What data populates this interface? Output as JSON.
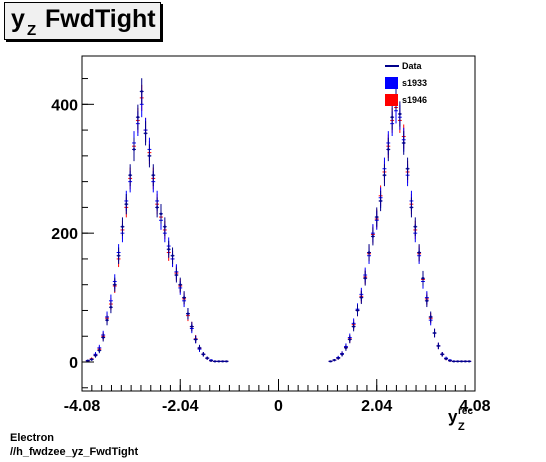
{
  "title": {
    "main": "y",
    "sub": "Z",
    "rest": "FwdTight"
  },
  "footer": {
    "line1": "Electron",
    "line2": "//h_fwdzee_yz_FwdTight"
  },
  "colors": {
    "data": "#00008b",
    "s1933": "#0000ff",
    "s1946": "#ff0000",
    "frame": "#000000"
  },
  "chart_data": {
    "type": "scatter",
    "xlim": [
      -4.08,
      4.08
    ],
    "ylim": [
      -45,
      475
    ],
    "x_tick_labels": [
      {
        "x": -4.08,
        "label": "-4.08"
      },
      {
        "x": -2.04,
        "label": "-2.04"
      },
      {
        "x": 0,
        "label": "0"
      },
      {
        "x": 2.04,
        "label": "2.04"
      },
      {
        "x": 4.08,
        "label": "4.08"
      }
    ],
    "y_tick_labels": [
      {
        "y": 0,
        "label": "0"
      },
      {
        "y": 200,
        "label": "200"
      },
      {
        "y": 400,
        "label": "400"
      }
    ],
    "xlabel": {
      "main": "y",
      "sup": "rec",
      "sub": "Z"
    },
    "legend": [
      {
        "name": "Data",
        "style": "line",
        "color": "#00008b"
      },
      {
        "name": "s1933",
        "style": "box",
        "color": "#0000ff"
      },
      {
        "name": "s1946",
        "style": "box",
        "color": "#ff0000"
      }
    ],
    "legend_position": "top-right",
    "grid": false,
    "series": [
      {
        "name": "Data",
        "x": [
          -3.96,
          -3.88,
          -3.8,
          -3.72,
          -3.64,
          -3.56,
          -3.48,
          -3.4,
          -3.32,
          -3.24,
          -3.16,
          -3.08,
          -3.0,
          -2.92,
          -2.84,
          -2.76,
          -2.68,
          -2.6,
          -2.52,
          -2.44,
          -2.36,
          -2.28,
          -2.2,
          -2.12,
          -2.04,
          -1.96,
          -1.88,
          -1.8,
          -1.72,
          -1.64,
          -1.56,
          -1.48,
          -1.4,
          -1.32,
          -1.24,
          -1.16,
          -1.08,
          1.08,
          1.16,
          1.24,
          1.32,
          1.4,
          1.48,
          1.56,
          1.64,
          1.72,
          1.8,
          1.88,
          1.96,
          2.04,
          2.12,
          2.2,
          2.28,
          2.36,
          2.44,
          2.52,
          2.6,
          2.68,
          2.76,
          2.84,
          2.92,
          3.0,
          3.08,
          3.16,
          3.24,
          3.32,
          3.4,
          3.48,
          3.56,
          3.64,
          3.72,
          3.8,
          3.88,
          3.96
        ],
        "y": [
          2,
          4,
          10,
          18,
          38,
          65,
          85,
          120,
          165,
          210,
          245,
          290,
          330,
          380,
          420,
          355,
          320,
          290,
          240,
          230,
          210,
          175,
          165,
          135,
          120,
          100,
          75,
          55,
          35,
          22,
          12,
          6,
          2,
          1,
          1,
          1,
          1,
          1,
          3,
          6,
          12,
          22,
          35,
          55,
          80,
          100,
          130,
          170,
          195,
          225,
          250,
          290,
          330,
          380,
          410,
          385,
          340,
          300,
          240,
          210,
          170,
          130,
          95,
          70,
          45,
          25,
          12,
          5,
          2,
          1,
          1,
          1,
          1,
          1
        ],
        "yerr": [
          1.5,
          2,
          3.2,
          4.3,
          6.2,
          8,
          9.2,
          11,
          12.8,
          14.5,
          15.7,
          17,
          18.2,
          19.5,
          20.5,
          18.8,
          17.9,
          17,
          15.5,
          15.2,
          14.5,
          13.2,
          12.8,
          11.6,
          11,
          10,
          8.7,
          7.4,
          5.9,
          4.7,
          3.5,
          2.4,
          1.4,
          1,
          1,
          1,
          1,
          1,
          1.7,
          2.4,
          3.5,
          4.7,
          5.9,
          7.4,
          8.9,
          10,
          11.4,
          13,
          14,
          15,
          15.8,
          17,
          18.2,
          19.5,
          20.2,
          19.6,
          18.4,
          17.3,
          15.5,
          14.5,
          13,
          11.4,
          9.7,
          8.4,
          6.7,
          5,
          3.5,
          2.2,
          1.4,
          1,
          1,
          1,
          1,
          1
        ]
      },
      {
        "name": "s1933",
        "x": [
          -3.96,
          -3.88,
          -3.8,
          -3.72,
          -3.64,
          -3.56,
          -3.48,
          -3.4,
          -3.32,
          -3.24,
          -3.16,
          -3.08,
          -3.0,
          -2.92,
          -2.84,
          -2.76,
          -2.68,
          -2.6,
          -2.52,
          -2.44,
          -2.36,
          -2.28,
          -2.2,
          -2.12,
          -2.04,
          -1.96,
          -1.88,
          -1.8,
          -1.72,
          -1.64,
          -1.56,
          -1.48,
          -1.4,
          -1.32,
          -1.24,
          -1.16,
          -1.08,
          1.08,
          1.16,
          1.24,
          1.32,
          1.4,
          1.48,
          1.56,
          1.64,
          1.72,
          1.8,
          1.88,
          1.96,
          2.04,
          2.12,
          2.2,
          2.28,
          2.36,
          2.44,
          2.52,
          2.6,
          2.68,
          2.76,
          2.84,
          2.92,
          3.0,
          3.08,
          3.16,
          3.24,
          3.32,
          3.4,
          3.48,
          3.56,
          3.64,
          3.72,
          3.8,
          3.88,
          3.96
        ],
        "y": [
          2,
          4,
          12,
          22,
          42,
          70,
          95,
          125,
          170,
          200,
          250,
          280,
          340,
          370,
          400,
          360,
          330,
          280,
          250,
          220,
          200,
          180,
          160,
          140,
          115,
          95,
          75,
          52,
          35,
          20,
          12,
          6,
          3,
          1,
          1,
          1,
          1,
          1,
          3,
          7,
          13,
          24,
          38,
          60,
          82,
          105,
          135,
          165,
          200,
          220,
          255,
          300,
          340,
          370,
          390,
          380,
          345,
          290,
          250,
          200,
          165,
          125,
          100,
          65,
          45,
          25,
          12,
          6,
          3,
          1,
          1,
          1,
          1,
          1
        ],
        "yerr": [
          1.4,
          2,
          3.5,
          4.7,
          6.5,
          8.4,
          9.7,
          11.2,
          13,
          14.1,
          15.8,
          16.7,
          18.4,
          19.2,
          20,
          19,
          18.2,
          16.7,
          15.8,
          14.8,
          14.1,
          13.4,
          12.6,
          11.8,
          10.7,
          9.7,
          8.7,
          7.2,
          5.9,
          4.5,
          3.5,
          2.4,
          1.7,
          1,
          1,
          1,
          1,
          1,
          1.7,
          2.6,
          3.6,
          4.9,
          6.2,
          7.7,
          9.1,
          10.2,
          11.6,
          12.8,
          14.1,
          14.8,
          16,
          17.3,
          18.4,
          19.2,
          19.7,
          19.5,
          18.6,
          17,
          15.8,
          14.1,
          12.8,
          11.2,
          10,
          8.1,
          6.7,
          5,
          3.5,
          2.4,
          1.7,
          1,
          1,
          1,
          1,
          1
        ]
      },
      {
        "name": "s1946",
        "x": [
          -3.96,
          -3.88,
          -3.8,
          -3.72,
          -3.64,
          -3.56,
          -3.48,
          -3.4,
          -3.32,
          -3.24,
          -3.16,
          -3.08,
          -3.0,
          -2.92,
          -2.84,
          -2.76,
          -2.68,
          -2.6,
          -2.52,
          -2.44,
          -2.36,
          -2.28,
          -2.2,
          -2.12,
          -2.04,
          -1.96,
          -1.88,
          -1.8,
          -1.72,
          -1.64,
          -1.56,
          -1.48,
          -1.4,
          -1.32,
          -1.24,
          -1.16,
          -1.08,
          1.08,
          1.16,
          1.24,
          1.32,
          1.4,
          1.48,
          1.56,
          1.64,
          1.72,
          1.8,
          1.88,
          1.96,
          2.04,
          2.12,
          2.2,
          2.28,
          2.36,
          2.44,
          2.52,
          2.6,
          2.68,
          2.76,
          2.84,
          2.92,
          3.0,
          3.08,
          3.16,
          3.24,
          3.32,
          3.4,
          3.48,
          3.56,
          3.64,
          3.72,
          3.8,
          3.88,
          3.96
        ],
        "y": [
          2,
          5,
          11,
          20,
          40,
          68,
          90,
          118,
          160,
          205,
          240,
          285,
          335,
          375,
          410,
          360,
          325,
          285,
          245,
          225,
          205,
          170,
          160,
          138,
          118,
          98,
          72,
          55,
          36,
          21,
          12,
          6,
          2,
          1,
          1,
          1,
          1,
          1,
          3,
          6,
          13,
          23,
          36,
          58,
          80,
          102,
          132,
          168,
          198,
          222,
          258,
          295,
          335,
          375,
          395,
          375,
          350,
          295,
          245,
          205,
          168,
          128,
          98,
          68,
          45,
          25,
          12,
          5,
          2,
          1,
          1,
          1,
          1,
          1
        ],
        "yerr": [
          1.4,
          2.2,
          3.3,
          4.5,
          6.3,
          8.2,
          9.5,
          10.9,
          12.6,
          14.3,
          15.5,
          16.9,
          18.3,
          19.4,
          20.2,
          19,
          18,
          16.9,
          15.7,
          15,
          14.3,
          13,
          12.6,
          11.7,
          10.9,
          9.9,
          8.5,
          7.4,
          6,
          4.6,
          3.5,
          2.4,
          1.4,
          1,
          1,
          1,
          1,
          1,
          1.7,
          2.4,
          3.6,
          4.8,
          6,
          7.6,
          8.9,
          10.1,
          11.5,
          13,
          14.1,
          14.9,
          16.1,
          17.2,
          18.3,
          19.4,
          19.9,
          19.4,
          18.7,
          17.2,
          15.7,
          14.3,
          13,
          11.3,
          9.9,
          8.2,
          6.7,
          5,
          3.5,
          2.2,
          1.4,
          1,
          1,
          1,
          1,
          1
        ]
      }
    ]
  }
}
